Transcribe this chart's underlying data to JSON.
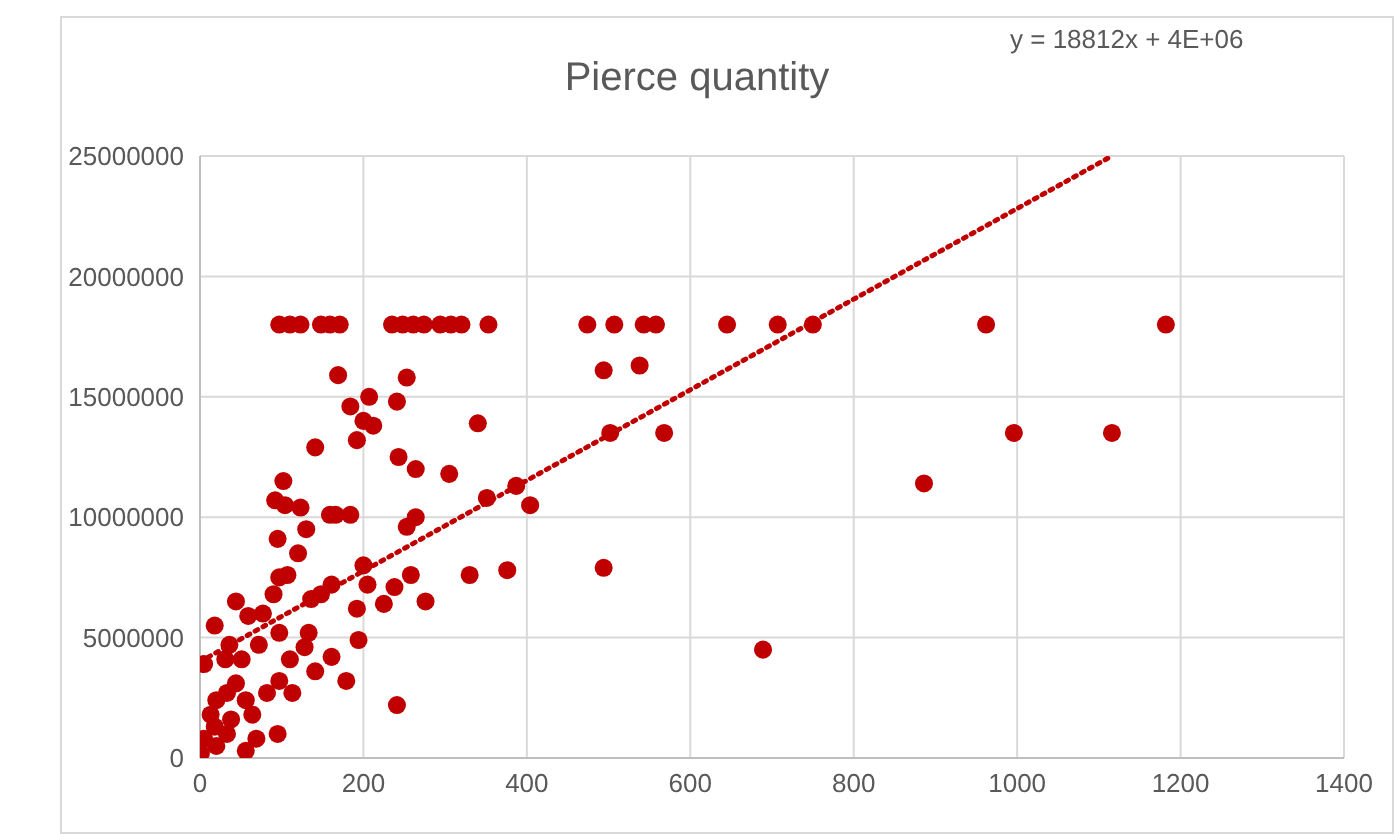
{
  "chart_data": {
    "type": "scatter",
    "title": "Pierce quantity",
    "annotations": [
      "y = 18812x + 4E+06"
    ],
    "xlim": [
      0,
      1400
    ],
    "xticks": [
      0,
      200,
      400,
      600,
      800,
      1000,
      1200,
      1400
    ],
    "ylim": [
      0,
      25000000
    ],
    "yticks": [
      0,
      5000000,
      10000000,
      15000000,
      20000000,
      25000000
    ],
    "grid": true,
    "series": [
      {
        "type": "scatter",
        "marker": "circle",
        "color": "#c00000",
        "x": [
          97,
          110,
          123,
          148,
          159,
          171,
          235,
          248,
          261,
          274,
          294,
          307,
          320,
          353,
          474,
          507,
          543,
          558,
          645,
          707,
          750,
          962,
          1182,
          169,
          253,
          207,
          184,
          241,
          200,
          212,
          192,
          141,
          340,
          243,
          264,
          305,
          102,
          92,
          104,
          123,
          159,
          184,
          166,
          264,
          253,
          130,
          95,
          351,
          387,
          404,
          502,
          494,
          120,
          107,
          97,
          200,
          205,
          161,
          238,
          258,
          330,
          376,
          494,
          225,
          276,
          192,
          194,
          148,
          136,
          90,
          77,
          44,
          18,
          59,
          97,
          133,
          128,
          161,
          141,
          179,
          241,
          113,
          95,
          5,
          36,
          31,
          51,
          72,
          44,
          20,
          13,
          64,
          82,
          38,
          5,
          1,
          20,
          56,
          69,
          33,
          97,
          110,
          56,
          18,
          33,
          689,
          886,
          996,
          1116,
          538,
          568
        ],
        "values": [
          18000000,
          18000000,
          18000000,
          18000000,
          18000000,
          18000000,
          18000000,
          18000000,
          18000000,
          18000000,
          18000000,
          18000000,
          18000000,
          18000000,
          18000000,
          18000000,
          18000000,
          18000000,
          18000000,
          18000000,
          18000000,
          18000000,
          18000000,
          15900000,
          15800000,
          15000000,
          14600000,
          14800000,
          14000000,
          13800000,
          13200000,
          12900000,
          13900000,
          12500000,
          12000000,
          11800000,
          11500000,
          10700000,
          10500000,
          10400000,
          10100000,
          10100000,
          10100000,
          10000000,
          9600000,
          9500000,
          9100000,
          10800000,
          11300000,
          10500000,
          13500000,
          16100000,
          8500000,
          7600000,
          7500000,
          8000000,
          7200000,
          7200000,
          7100000,
          7600000,
          7600000,
          7800000,
          7900000,
          6400000,
          6500000,
          6200000,
          4900000,
          6800000,
          6600000,
          6800000,
          6000000,
          6500000,
          5500000,
          5900000,
          5200000,
          5200000,
          4600000,
          4200000,
          3600000,
          3200000,
          2200000,
          2700000,
          1000000,
          3900000,
          4700000,
          4100000,
          4100000,
          4700000,
          3100000,
          2400000,
          1800000,
          1800000,
          2700000,
          1600000,
          800000,
          200000,
          500000,
          300000,
          800000,
          1000000,
          3200000,
          4100000,
          2400000,
          1300000,
          2700000,
          4500000,
          11400000,
          13500000,
          13500000,
          16300000,
          13500000
        ]
      },
      {
        "type": "line",
        "color": "#c00000",
        "line_style": "dotted",
        "x": [
          0,
          1116
        ],
        "values": [
          4000000,
          25000000
        ]
      }
    ]
  }
}
